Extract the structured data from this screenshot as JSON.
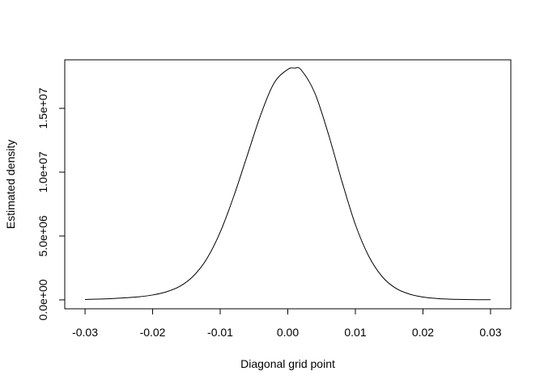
{
  "chart_data": {
    "type": "line",
    "title": "",
    "xlabel": "Diagonal grid point",
    "ylabel": "Estimated density",
    "xlim": [
      -0.033,
      0.033
    ],
    "ylim": [
      -700000,
      18800000
    ],
    "x_ticks": [
      {
        "value": -0.03,
        "label": "-0.03"
      },
      {
        "value": -0.02,
        "label": "-0.02"
      },
      {
        "value": -0.01,
        "label": "-0.01"
      },
      {
        "value": 0.0,
        "label": "0.00"
      },
      {
        "value": 0.01,
        "label": "0.01"
      },
      {
        "value": 0.02,
        "label": "0.02"
      },
      {
        "value": 0.03,
        "label": "0.03"
      }
    ],
    "y_ticks": [
      {
        "value": 0,
        "label": "0.0e+00"
      },
      {
        "value": 5000000,
        "label": "5.0e+06"
      },
      {
        "value": 10000000,
        "label": "1.0e+07"
      },
      {
        "value": 15000000,
        "label": "1.5e+07"
      }
    ],
    "grid": false,
    "series": [
      {
        "color": "#000000",
        "x": [
          -0.03,
          -0.028,
          -0.026,
          -0.024,
          -0.022,
          -0.02,
          -0.018,
          -0.016,
          -0.014,
          -0.012,
          -0.01,
          -0.008,
          -0.006,
          -0.004,
          -0.002,
          0.0,
          0.001,
          0.002,
          0.004,
          0.006,
          0.008,
          0.01,
          0.012,
          0.014,
          0.016,
          0.018,
          0.02,
          0.022,
          0.024,
          0.026,
          0.028,
          0.03
        ],
        "y": [
          30000,
          60000,
          100000,
          160000,
          240000,
          380000,
          620000,
          1050000,
          1850000,
          3200000,
          5300000,
          8100000,
          11300000,
          14500000,
          17000000,
          18050000,
          18150000,
          18000000,
          16200000,
          13000000,
          9300000,
          5900000,
          3400000,
          1800000,
          900000,
          450000,
          220000,
          110000,
          55000,
          30000,
          15000,
          10000
        ]
      }
    ]
  }
}
